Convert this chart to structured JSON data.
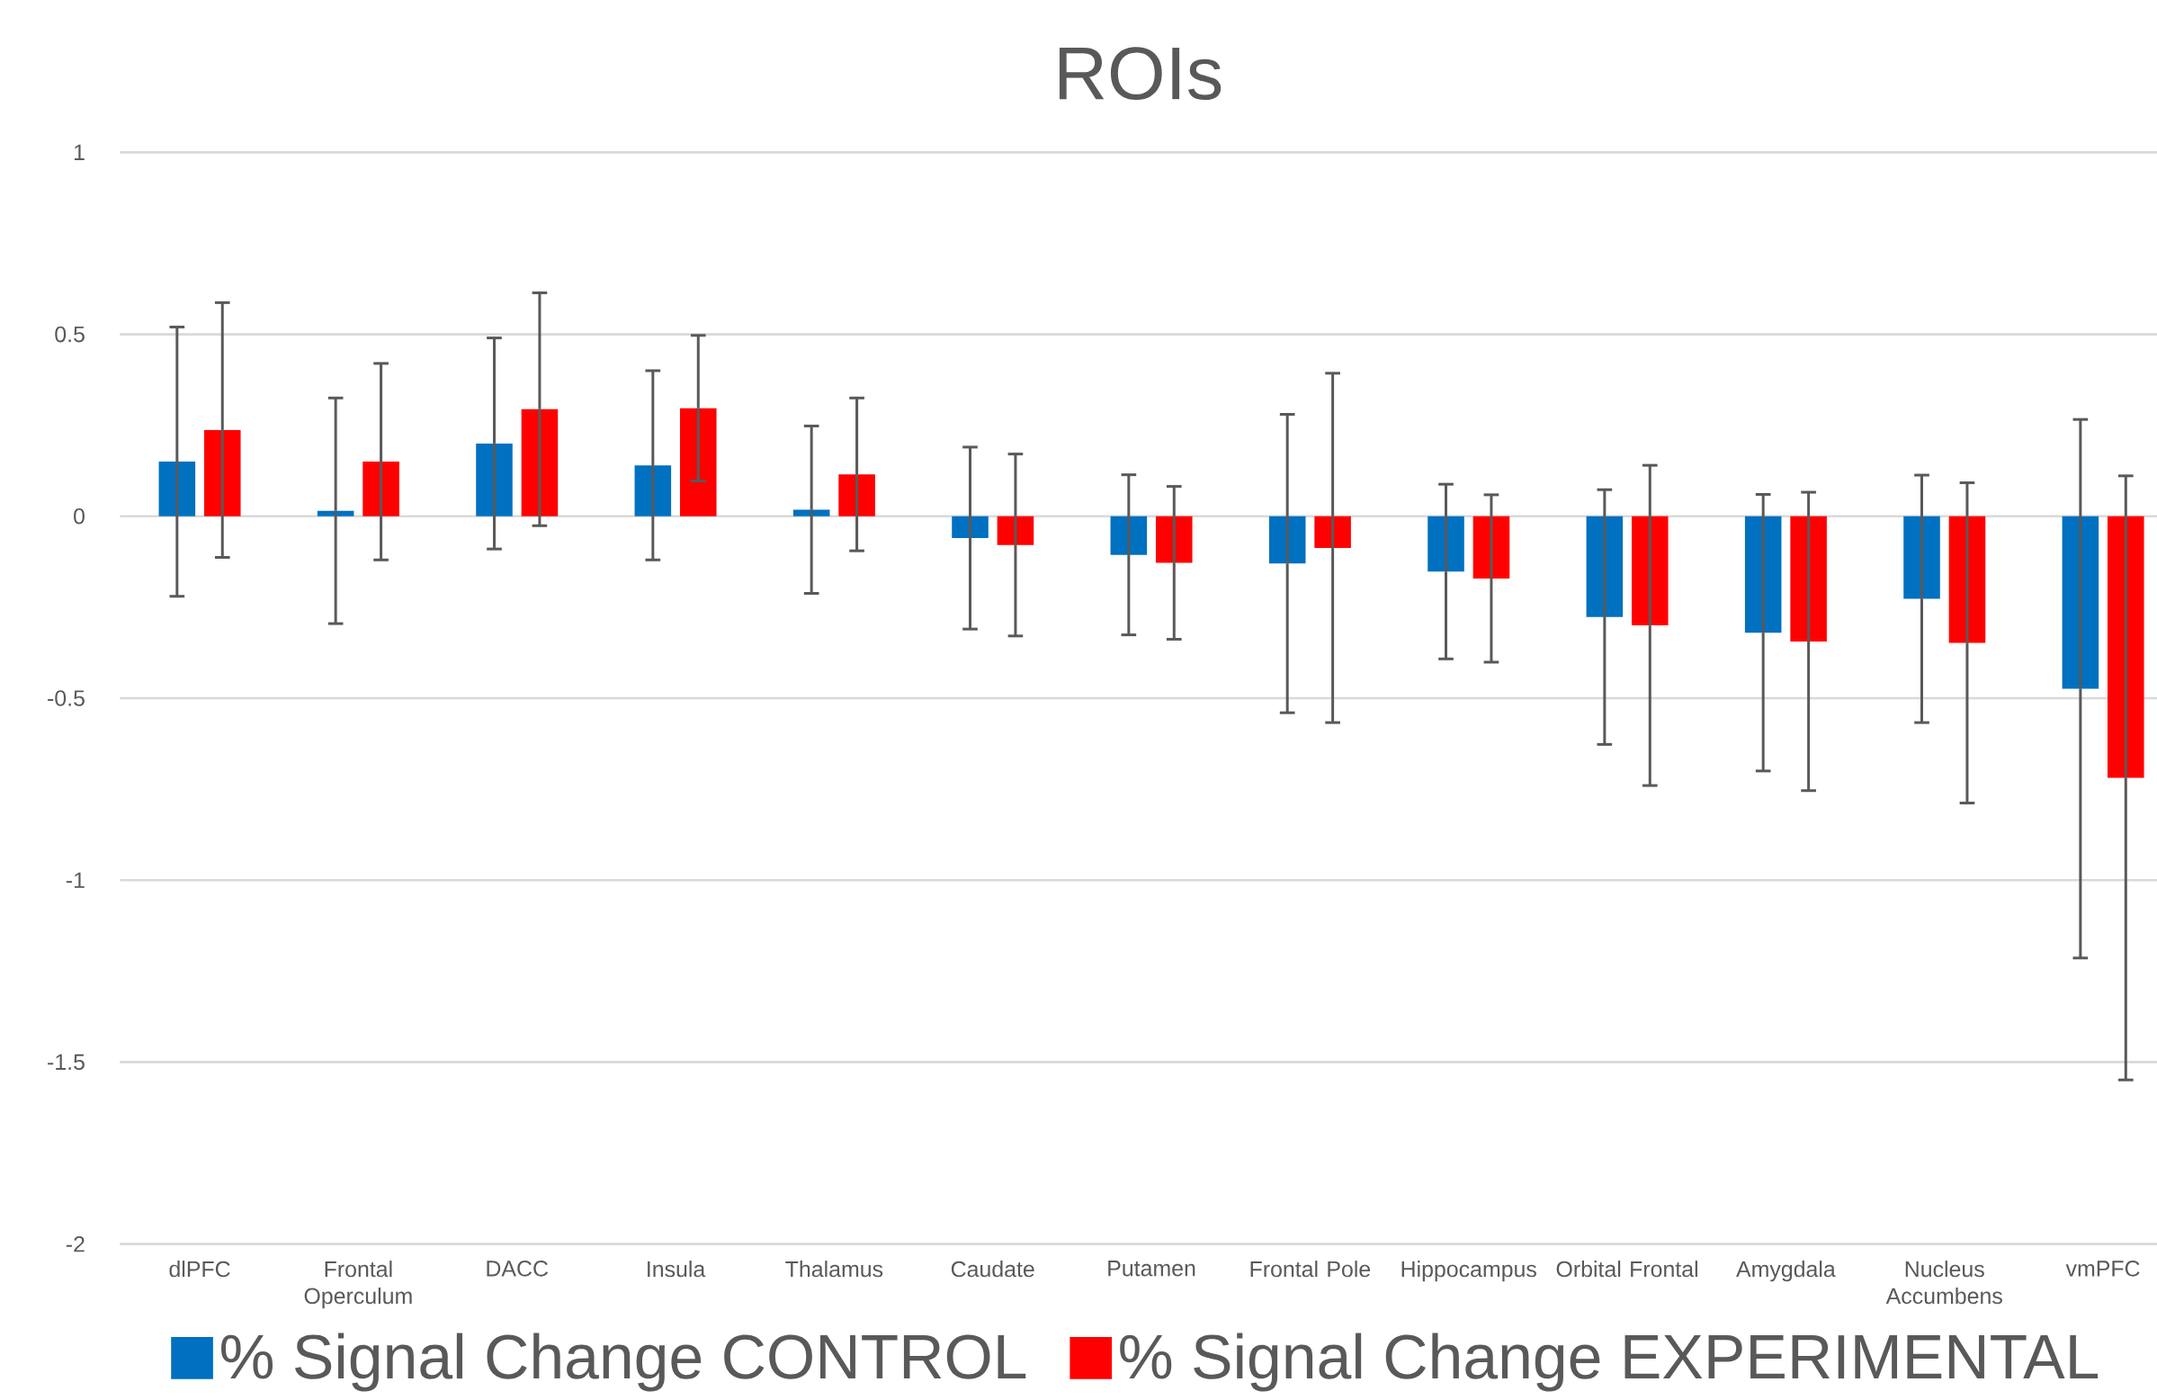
{
  "chart_data": {
    "type": "bar",
    "title": "ROIs",
    "categories": [
      "dlPFC",
      "Frontal Operculum",
      "DACC",
      "Insula",
      "Thalamus",
      "Caudate",
      "Putamen",
      "Frontal Pole",
      "Hippocampus",
      "Orbital Frontal",
      "Amygdala",
      "Nucleus Accumbens",
      "vmPFC"
    ],
    "series": [
      {
        "name": "% Signal Change CONTROL",
        "color": "#0070c0",
        "values": [
          0.15,
          0.015,
          0.2,
          0.14,
          0.018,
          -0.06,
          -0.106,
          -0.13,
          -0.152,
          -0.277,
          -0.32,
          -0.227,
          -0.474
        ],
        "errors": [
          0.37,
          0.31,
          0.29,
          0.26,
          0.23,
          0.25,
          0.22,
          0.41,
          0.24,
          0.35,
          0.38,
          0.34,
          0.74
        ]
      },
      {
        "name": "% Signal Change EXPERIMENTAL",
        "color": "#ff0000",
        "values": [
          0.237,
          0.15,
          0.294,
          0.297,
          0.115,
          -0.079,
          -0.128,
          -0.087,
          -0.171,
          -0.3,
          -0.344,
          -0.348,
          -0.719
        ],
        "errors": [
          0.35,
          0.27,
          0.32,
          0.2,
          0.21,
          0.25,
          0.21,
          0.48,
          0.23,
          0.44,
          0.41,
          0.44,
          0.83
        ]
      }
    ],
    "ylim": [
      -2,
      1
    ],
    "yticks": [
      -2,
      -1.5,
      -1,
      -0.5,
      0,
      0.5,
      1
    ],
    "grid": "y",
    "legend": "bottom"
  }
}
